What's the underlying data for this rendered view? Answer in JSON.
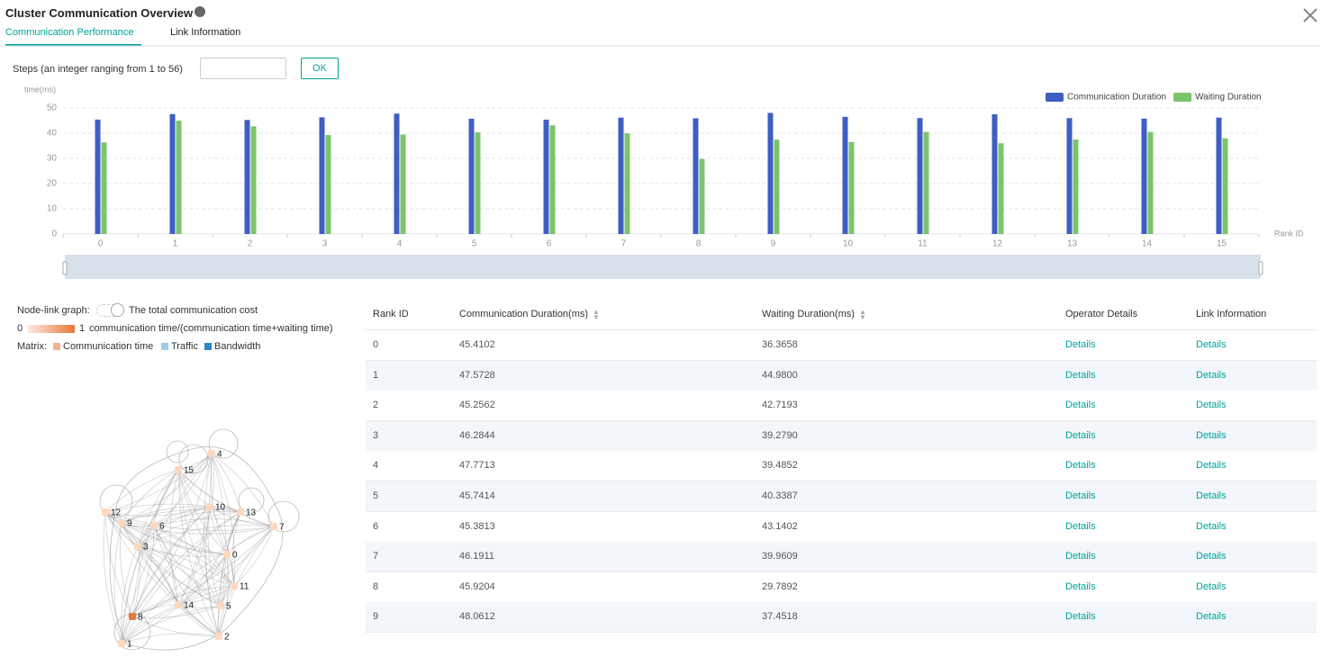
{
  "header": {
    "title": "Cluster Communication Overview",
    "tabs": [
      "Communication Performance",
      "Link Information"
    ]
  },
  "steps": {
    "label": "Steps (an integer ranging from 1 to 56)",
    "button": "OK"
  },
  "chart_data": {
    "type": "bar",
    "y_label": "time(ms)",
    "x_label": "Rank ID",
    "categories": [
      "0",
      "1",
      "2",
      "3",
      "4",
      "5",
      "6",
      "7",
      "8",
      "9",
      "10",
      "11",
      "12",
      "13",
      "14",
      "15"
    ],
    "series": [
      {
        "name": "Communication Duration",
        "color": "#3f5ec3",
        "values": [
          45.4102,
          47.5728,
          45.2562,
          46.2844,
          47.7713,
          45.7414,
          45.3813,
          46.1911,
          45.9204,
          48.0612,
          46.5,
          46,
          47.5,
          46,
          45.8,
          46.2
        ]
      },
      {
        "name": "Waiting Duration",
        "color": "#7bc46b",
        "values": [
          36.3658,
          44.98,
          42.7193,
          39.279,
          39.4852,
          40.3387,
          43.1402,
          39.9609,
          29.7892,
          37.4518,
          36.5,
          40.5,
          36,
          37.5,
          40.5,
          38
        ]
      }
    ],
    "ylim": [
      0,
      50
    ],
    "yticks": [
      0,
      10,
      20,
      30,
      40,
      50
    ],
    "grid": true,
    "legend": "top-right"
  },
  "graph_legend": {
    "node_link_label": "Node-link graph:",
    "toggle_label": "The total communication cost",
    "scale_min": "0",
    "scale_max": "1",
    "scale_label": "communication time/(communication time+waiting time)",
    "matrix_label": "Matrix:",
    "matrix_items": [
      {
        "name": "Communication time",
        "color": "#f4b08c"
      },
      {
        "name": "Traffic",
        "color": "#9fcbe8"
      },
      {
        "name": "Bandwidth",
        "color": "#2a86c0"
      }
    ]
  },
  "graph": {
    "nodes": [
      {
        "label": "0",
        "color": "#fcd9c0"
      },
      {
        "label": "1",
        "color": "#fcd9c0"
      },
      {
        "label": "2",
        "color": "#fcd9c0"
      },
      {
        "label": "3",
        "color": "#fcd9c0"
      },
      {
        "label": "4",
        "color": "#fcd9c0"
      },
      {
        "label": "5",
        "color": "#fcd9c0"
      },
      {
        "label": "6",
        "color": "#fcd9c0"
      },
      {
        "label": "7",
        "color": "#fcd9c0"
      },
      {
        "label": "8",
        "color": "#e8773a"
      },
      {
        "label": "9",
        "color": "#fcd9c0"
      },
      {
        "label": "10",
        "color": "#fcd9c0"
      },
      {
        "label": "11",
        "color": "#fcd9c0"
      },
      {
        "label": "12",
        "color": "#fcd9c0"
      },
      {
        "label": "13",
        "color": "#fcd9c0"
      },
      {
        "label": "14",
        "color": "#fcd9c0"
      },
      {
        "label": "15",
        "color": "#fcd9c0"
      }
    ]
  },
  "table": {
    "columns": [
      "Rank ID",
      "Communication Duration(ms)",
      "Waiting Duration(ms)",
      "Operator Details",
      "Link Information"
    ],
    "rows": [
      [
        "0",
        "45.4102",
        "36.3658",
        "Details",
        "Details"
      ],
      [
        "1",
        "47.5728",
        "44.9800",
        "Details",
        "Details"
      ],
      [
        "2",
        "45.2562",
        "42.7193",
        "Details",
        "Details"
      ],
      [
        "3",
        "46.2844",
        "39.2790",
        "Details",
        "Details"
      ],
      [
        "4",
        "47.7713",
        "39.4852",
        "Details",
        "Details"
      ],
      [
        "5",
        "45.7414",
        "40.3387",
        "Details",
        "Details"
      ],
      [
        "6",
        "45.3813",
        "43.1402",
        "Details",
        "Details"
      ],
      [
        "7",
        "46.1911",
        "39.9609",
        "Details",
        "Details"
      ],
      [
        "8",
        "45.9204",
        "29.7892",
        "Details",
        "Details"
      ],
      [
        "9",
        "48.0612",
        "37.4518",
        "Details",
        "Details"
      ]
    ]
  }
}
